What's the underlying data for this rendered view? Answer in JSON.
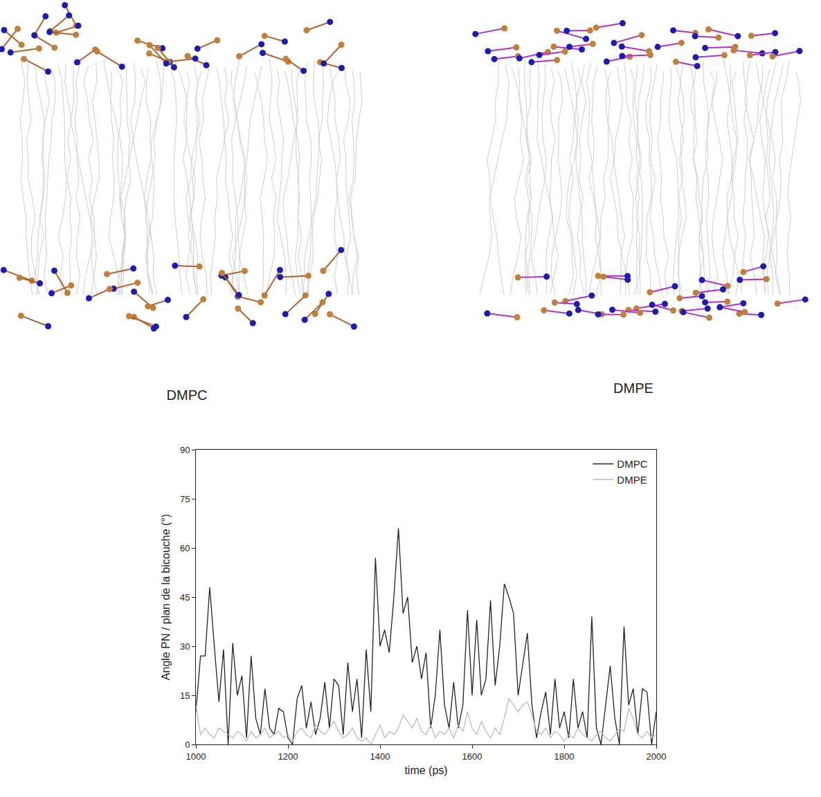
{
  "snapshots": {
    "labels": [
      "DMPC",
      "DMPE"
    ]
  },
  "chart_data": {
    "type": "line",
    "x_label": "time (ps)",
    "y_label": "Angle PN / plan de la bicouche (°)",
    "x": [
      1000,
      1010,
      1020,
      1030,
      1040,
      1050,
      1060,
      1070,
      1080,
      1090,
      1100,
      1110,
      1120,
      1130,
      1140,
      1150,
      1160,
      1170,
      1180,
      1190,
      1200,
      1210,
      1220,
      1230,
      1240,
      1250,
      1260,
      1270,
      1280,
      1290,
      1300,
      1310,
      1320,
      1330,
      1340,
      1350,
      1360,
      1370,
      1380,
      1390,
      1400,
      1410,
      1420,
      1430,
      1440,
      1450,
      1460,
      1470,
      1480,
      1490,
      1500,
      1510,
      1520,
      1530,
      1540,
      1550,
      1560,
      1570,
      1580,
      1590,
      1600,
      1610,
      1620,
      1630,
      1640,
      1650,
      1660,
      1670,
      1680,
      1690,
      1700,
      1710,
      1720,
      1730,
      1740,
      1750,
      1760,
      1770,
      1780,
      1790,
      1800,
      1810,
      1820,
      1830,
      1840,
      1850,
      1860,
      1870,
      1880,
      1890,
      1900,
      1910,
      1920,
      1930,
      1940,
      1950,
      1960,
      1970,
      1980,
      1990,
      2000
    ],
    "series": [
      {
        "name": "DMPC",
        "color": "#222222",
        "values": [
          10,
          27,
          27,
          48,
          30,
          13,
          29,
          0,
          31,
          15,
          21,
          2,
          27,
          8,
          3,
          17,
          5,
          3,
          11,
          10,
          2,
          0,
          14,
          18,
          5,
          13,
          3,
          8,
          19,
          5,
          20,
          18,
          3,
          25,
          10,
          20,
          2,
          29,
          10,
          57,
          30,
          35,
          28,
          45,
          66,
          40,
          45,
          25,
          30,
          20,
          28,
          5,
          15,
          35,
          12,
          5,
          19,
          5,
          12,
          41,
          15,
          38,
          15,
          20,
          44,
          18,
          30,
          49,
          45,
          40,
          15,
          25,
          34,
          12,
          2,
          10,
          16,
          3,
          20,
          5,
          10,
          2,
          20,
          5,
          10,
          2,
          39,
          5,
          0,
          12,
          24,
          8,
          0,
          36,
          12,
          17,
          3,
          17,
          16,
          0,
          10
        ]
      },
      {
        "name": "DMPE",
        "color": "#bbbbbb",
        "values": [
          12,
          3,
          5,
          3,
          2,
          5,
          4,
          3,
          2,
          4,
          3,
          1,
          4,
          2,
          3,
          5,
          2,
          3,
          4,
          2,
          3,
          1,
          4,
          5,
          3,
          2,
          6,
          4,
          3,
          5,
          7,
          4,
          2,
          3,
          5,
          2,
          1,
          2,
          0,
          3,
          6,
          2,
          4,
          3,
          5,
          9,
          7,
          5,
          8,
          4,
          3,
          6,
          2,
          4,
          3,
          5,
          2,
          6,
          4,
          10,
          5,
          3,
          7,
          4,
          2,
          5,
          3,
          8,
          14,
          12,
          10,
          12,
          13,
          9,
          4,
          3,
          5,
          2,
          4,
          3,
          1,
          3,
          2,
          5,
          3,
          2,
          1,
          3,
          4,
          2,
          1,
          3,
          5,
          4,
          11,
          8,
          3,
          2,
          4,
          2,
          3
        ]
      }
    ],
    "xlim": [
      1000,
      2000
    ],
    "ylim": [
      0,
      90
    ],
    "xticks": [
      1000,
      1200,
      1400,
      1600,
      1800,
      2000
    ],
    "yticks": [
      0,
      15,
      30,
      45,
      60,
      75,
      90
    ],
    "grid": false,
    "legend": "top right"
  }
}
